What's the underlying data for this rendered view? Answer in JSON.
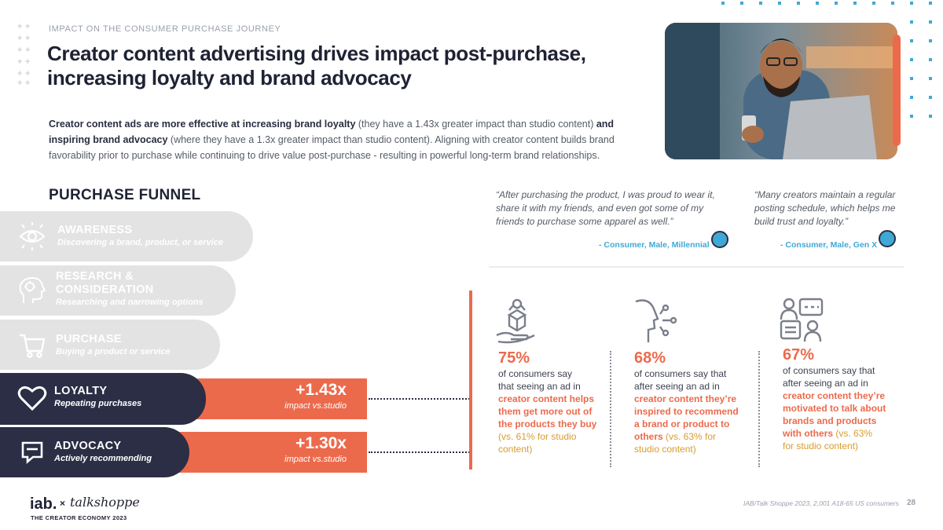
{
  "header": {
    "eyebrow": "IMPACT ON THE CONSUMER PURCHASE JOURNEY",
    "title_line1": "Creator content advertising drives impact post-purchase,",
    "title_line2": "increasing loyalty and brand advocacy"
  },
  "intro": {
    "b1": "Creator content ads are more effective at increasing brand loyalty",
    "t1": " (they have a 1.43x greater impact than studio content) ",
    "b2": "and inspiring brand advocacy",
    "t2": " (where they have a 1.3x greater impact than studio content). Aligning with creator content builds brand favorability prior to purchase while continuing to drive value post-purchase - resulting in powerful long-term brand relationships."
  },
  "funnel": {
    "title": "PURCHASE FUNNEL",
    "stages": [
      {
        "name": "AWARENESS",
        "sub": "Discovering a brand, product, or service",
        "icon": "eye-icon"
      },
      {
        "name": "RESEARCH &",
        "name2": "CONSIDERATION",
        "sub": "Researching and narrowing options",
        "icon": "brain-head-icon"
      },
      {
        "name": "PURCHASE",
        "sub": "Buying a product or service",
        "icon": "cart-icon"
      },
      {
        "name": "LOYALTY",
        "sub": "Repeating purchases",
        "icon": "heart-icon"
      },
      {
        "name": "ADVOCACY",
        "sub": "Actively recommending",
        "icon": "speech-bubble-icon"
      }
    ],
    "impacts": [
      {
        "value": "+1.43x",
        "caption": "impact vs.studio"
      },
      {
        "value": "+1.30x",
        "caption": "impact vs.studio"
      }
    ]
  },
  "quotes": [
    {
      "l1": "“After purchasing the product, I was proud to wear it,",
      "l2": "share it with my friends, and even got some of my",
      "l3": "friends to purchase some apparel as well.”",
      "attribution": "- Consumer, Male, Millennial"
    },
    {
      "l1": "“Many creators maintain a regular",
      "l2": "posting schedule, which helps me",
      "l3": "build trust and loyalty.”",
      "attribution": "- Consumer, Male, Gen X"
    }
  ],
  "stats": [
    {
      "pct": "75%",
      "icon": "gift-hand-icon",
      "lines": [
        "of consumers say",
        "that seeing an ad in"
      ],
      "hl": [
        "creator content helps",
        "them get more out of",
        "the products they buy"
      ],
      "cmp": [
        "(vs. 61% for studio",
        "content)"
      ]
    },
    {
      "pct": "68%",
      "icon": "head-share-icon",
      "lines": [
        "of consumers say that",
        "after seeing an ad in"
      ],
      "hl": [
        "creator content they’re",
        "inspired to recommend",
        "a brand or product to",
        "others"
      ],
      "cmp": [
        " (vs. 63% for",
        "studio content)"
      ]
    },
    {
      "pct": "67%",
      "icon": "people-chat-icon",
      "lines": [
        "of consumers say that",
        "after seeing an ad in"
      ],
      "hl": [
        "creator content they’re",
        "motivated to talk about",
        "brands and products",
        "with others"
      ],
      "cmp": [
        " (vs. 63%",
        "for studio content)"
      ]
    }
  ],
  "footer": {
    "logo": "iab.",
    "x": "×",
    "brand": "talkshoppe",
    "sub": "THE CREATOR ECONOMY 2023",
    "source": "IAB/Talk Shoppe 2023, 2,001 A18-65 US consumers",
    "page": "28"
  },
  "colors": {
    "accent": "#ec6a4c",
    "navy": "#2b2e45",
    "blue": "#3fa9d6",
    "gray": "#e3e3e3"
  }
}
